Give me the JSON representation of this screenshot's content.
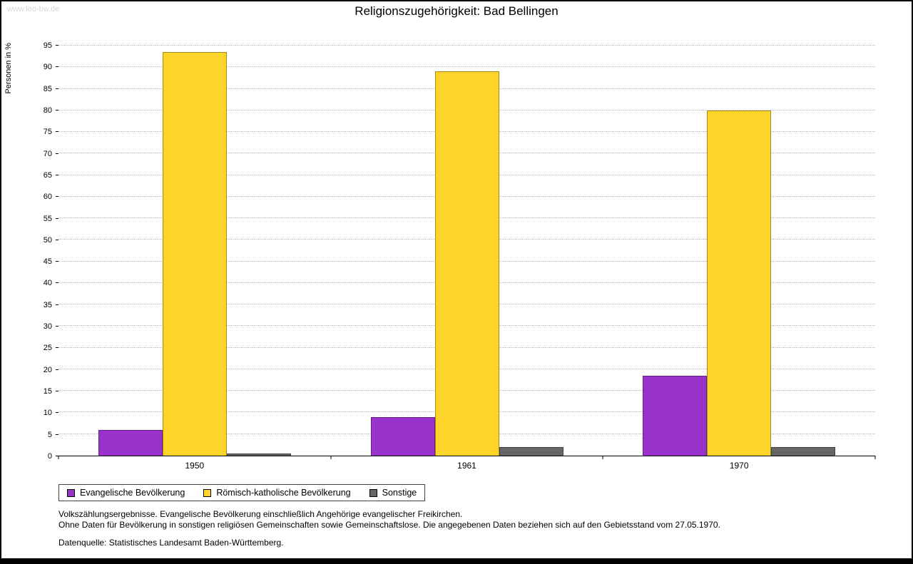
{
  "watermark": "www.leo-bw.de",
  "chart_data": {
    "type": "bar",
    "title": "Religionszugehörigkeit: Bad Bellingen",
    "xlabel": "",
    "ylabel": "Personen in %",
    "ylim": [
      0,
      95
    ],
    "ytick_step": 5,
    "grid": true,
    "legend_position": "bottom",
    "categories": [
      "1950",
      "1961",
      "1970"
    ],
    "series": [
      {
        "name": "Evangelische Bevölkerung",
        "color": "#9933cc",
        "values": [
          6,
          9,
          18.5
        ]
      },
      {
        "name": "Römisch-katholische Bevölkerung",
        "color": "#ffd428",
        "values": [
          93.5,
          89,
          80
        ]
      },
      {
        "name": "Sonstige",
        "color": "#666666",
        "values": [
          0.5,
          2,
          2
        ]
      }
    ]
  },
  "footnotes": [
    "Volkszählungsergebnisse. Evangelische Bevölkerung einschließlich Angehörige evangelischer Freikirchen.",
    "Ohne Daten für Bevölkerung in sonstigen religiösen Gemeinschaften sowie Gemeinschaftslose. Die angegebenen Daten beziehen sich auf den Gebietsstand vom 27.05.1970.",
    "Datenquelle: Statistisches Landesamt Baden-Württemberg."
  ]
}
